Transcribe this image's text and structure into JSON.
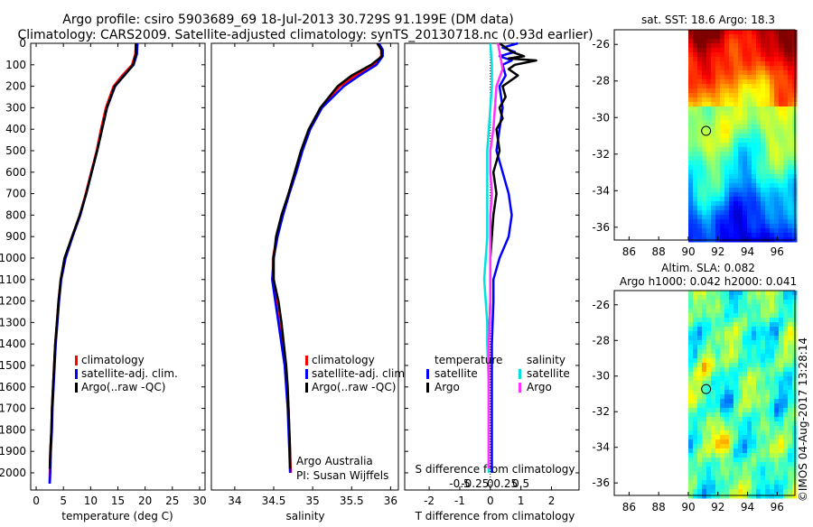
{
  "title": {
    "line1": "Argo profile: csiro 5903689_69 18-Jul-2013 30.729S 91.199E (DM data)",
    "line2": "Climatology: CARS2009. Satellite-adjusted climatology: synTS_20130718.nc (0.93d earlier)"
  },
  "colors": {
    "clim": "#ff0000",
    "sat": "#0000ff",
    "argo": "#000000",
    "cyan": "#00e0e0",
    "magenta": "#ff33ff"
  },
  "chart_data": [
    {
      "id": "temperature",
      "type": "line",
      "xlabel": "temperature (deg C)",
      "ylabel": "",
      "xlim": [
        -1,
        31
      ],
      "ylim": [
        2080,
        0
      ],
      "xticks": [
        0,
        5,
        10,
        15,
        20,
        25,
        30
      ],
      "yticks": [
        0,
        100,
        200,
        300,
        400,
        500,
        600,
        700,
        800,
        900,
        1000,
        1100,
        1200,
        1300,
        1400,
        1500,
        1600,
        1700,
        1800,
        1900,
        2000
      ],
      "legend": [
        "climatology",
        "satellite-adj. clim.",
        "Argo(..raw -QC)"
      ],
      "series": [
        {
          "name": "climatology",
          "color": "#ff0000",
          "depth": [
            0,
            50,
            100,
            150,
            200,
            300,
            400,
            500,
            600,
            700,
            800,
            900,
            1000,
            1100,
            1200,
            1300,
            1400,
            1500,
            1600,
            1700,
            1800,
            1900,
            2000,
            2050
          ],
          "values": [
            18.3,
            18.2,
            17.6,
            15.8,
            14.2,
            12.8,
            11.9,
            11.1,
            10.1,
            9.1,
            8.0,
            6.6,
            5.3,
            4.5,
            4.1,
            3.8,
            3.5,
            3.3,
            3.1,
            2.9,
            2.8,
            2.6,
            2.5,
            2.45
          ]
        },
        {
          "name": "satellite-adj. clim.",
          "color": "#0000ff",
          "depth": [
            0,
            50,
            100,
            150,
            200,
            300,
            400,
            500,
            600,
            700,
            800,
            900,
            1000,
            1100,
            1200,
            1300,
            1400,
            1500,
            1600,
            1700,
            1800,
            1900,
            2000,
            2050
          ],
          "values": [
            18.6,
            18.5,
            17.9,
            16.1,
            14.5,
            13.0,
            12.1,
            11.2,
            10.2,
            9.2,
            8.1,
            6.7,
            5.4,
            4.6,
            4.2,
            3.9,
            3.6,
            3.4,
            3.2,
            3.0,
            2.9,
            2.7,
            2.6,
            2.5
          ]
        },
        {
          "name": "Argo(..raw -QC)",
          "color": "#000000",
          "depth": [
            0,
            50,
            100,
            150,
            200,
            300,
            400,
            500,
            600,
            700,
            800,
            900,
            1000,
            1100,
            1200,
            1300,
            1400,
            1500,
            1600,
            1700,
            1800,
            1900,
            1980
          ],
          "values": [
            18.3,
            18.3,
            17.8,
            16.2,
            14.4,
            13.0,
            12.1,
            11.2,
            10.2,
            9.2,
            8.0,
            6.6,
            5.2,
            4.5,
            4.1,
            3.8,
            3.5,
            3.3,
            3.1,
            2.9,
            2.8,
            2.6,
            2.5
          ]
        }
      ]
    },
    {
      "id": "salinity",
      "type": "line",
      "xlabel": "salinity",
      "xlim": [
        33.7,
        36.1
      ],
      "ylim": [
        2080,
        0
      ],
      "xticks": [
        34,
        34.5,
        35,
        35.5,
        36
      ],
      "legend": [
        "climatology",
        "satellite-adj. clim.",
        "Argo(..raw -QC)"
      ],
      "annotation": [
        "Argo Australia",
        "PI: Susan Wijffels"
      ],
      "series": [
        {
          "name": "climatology",
          "color": "#ff0000",
          "depth": [
            0,
            30,
            60,
            100,
            150,
            200,
            300,
            400,
            500,
            600,
            700,
            800,
            900,
            1000,
            1100,
            1200,
            1300,
            1400,
            1500,
            1600,
            1700,
            1800,
            1900,
            2000
          ],
          "values": [
            35.83,
            35.88,
            35.88,
            35.78,
            35.55,
            35.35,
            35.1,
            34.96,
            34.86,
            34.78,
            34.69,
            34.61,
            34.54,
            34.49,
            34.49,
            34.53,
            34.57,
            34.61,
            34.65,
            34.67,
            34.69,
            34.7,
            34.71,
            34.72
          ]
        },
        {
          "name": "satellite-adj. clim.",
          "color": "#0000ff",
          "depth": [
            0,
            30,
            60,
            100,
            150,
            200,
            300,
            400,
            500,
            600,
            700,
            800,
            900,
            1000,
            1100,
            1200,
            1300,
            1400,
            1500,
            1600,
            1700,
            1800,
            1900,
            2000
          ],
          "values": [
            35.85,
            35.9,
            35.9,
            35.82,
            35.6,
            35.4,
            35.12,
            34.97,
            34.87,
            34.79,
            34.7,
            34.62,
            34.55,
            34.5,
            34.48,
            34.52,
            34.56,
            34.6,
            34.64,
            34.66,
            34.68,
            34.69,
            34.7,
            34.71
          ]
        },
        {
          "name": "Argo(..raw -QC)",
          "color": "#000000",
          "depth": [
            0,
            30,
            60,
            100,
            150,
            200,
            300,
            400,
            500,
            600,
            700,
            800,
            900,
            1000,
            1100,
            1200,
            1300,
            1400,
            1500,
            1600,
            1700,
            1800,
            1900,
            1980
          ],
          "values": [
            35.83,
            35.88,
            35.89,
            35.75,
            35.5,
            35.32,
            35.1,
            34.95,
            34.85,
            34.77,
            34.69,
            34.6,
            34.53,
            34.5,
            34.5,
            34.56,
            34.6,
            34.63,
            34.66,
            34.68,
            34.69,
            34.7,
            34.71,
            34.71
          ]
        }
      ]
    },
    {
      "id": "difference",
      "type": "line",
      "xlabel": "T difference from climatology",
      "xlabel2": "S difference from climatology",
      "xlim": [
        -2.8,
        2.9
      ],
      "ylim": [
        2080,
        0
      ],
      "xticks_t": [
        -2,
        -1,
        0,
        1,
        2
      ],
      "xticks_s_labels": [
        "-0.5",
        "-0.25",
        "0",
        "0.25",
        "0.5"
      ],
      "xticks_s_pos": [
        -1,
        -0.5,
        0,
        0.5,
        1
      ],
      "legend_t": [
        "temperature",
        "satellite",
        "Argo"
      ],
      "legend_s": [
        "salinity",
        "satellite",
        "Argo"
      ],
      "series": [
        {
          "name": "T satellite",
          "color": "#0000ff",
          "depth": [
            0,
            20,
            40,
            60,
            80,
            100,
            150,
            200,
            300,
            400,
            500,
            600,
            700,
            800,
            900,
            1000,
            1100,
            1200,
            1400,
            1600,
            1800,
            2000
          ],
          "values": [
            0.9,
            0.4,
            0.8,
            0.3,
            0.7,
            0.4,
            0.5,
            0.3,
            0.4,
            0.3,
            0.2,
            0.4,
            0.6,
            0.7,
            0.6,
            0.3,
            0.1,
            0.1,
            0.05,
            0.05,
            0.05,
            0.05
          ]
        },
        {
          "name": "T Argo",
          "color": "#000000",
          "depth": [
            0,
            20,
            40,
            60,
            70,
            80,
            100,
            120,
            150,
            200,
            250,
            300,
            350,
            400,
            500,
            600,
            700,
            800,
            900,
            1000,
            1100,
            1200,
            1400,
            1600,
            1800,
            1980
          ],
          "values": [
            0.3,
            0.5,
            0.7,
            1.1,
            0.6,
            1.5,
            0.8,
            0.6,
            0.9,
            0.4,
            0.5,
            0.3,
            0.4,
            0.2,
            0.3,
            0.1,
            0.2,
            0.1,
            0.05,
            0.0,
            0.0,
            0.0,
            -0.05,
            -0.05,
            -0.05,
            -0.05
          ]
        },
        {
          "name": "S satellite",
          "color": "#00e0e0",
          "depth": [
            0,
            100,
            200,
            300,
            400,
            500,
            600,
            700,
            800,
            900,
            1000,
            1100,
            1200,
            1300,
            1400,
            1600,
            1800,
            2000
          ],
          "values": [
            0.0,
            0.05,
            0.05,
            0.0,
            -0.05,
            -0.1,
            -0.1,
            -0.1,
            -0.1,
            -0.1,
            -0.15,
            -0.2,
            -0.15,
            -0.1,
            -0.1,
            -0.05,
            -0.05,
            -0.05
          ]
        },
        {
          "name": "S Argo",
          "color": "#ff33ff",
          "depth": [
            0,
            40,
            80,
            120,
            160,
            200,
            300,
            400,
            500,
            600,
            700,
            800,
            900,
            1000,
            1200,
            1400,
            1600,
            1800,
            1980
          ],
          "values": [
            0.25,
            0.3,
            0.35,
            0.4,
            0.3,
            0.2,
            0.15,
            0.1,
            0.0,
            0.0,
            0.05,
            0.0,
            0.0,
            0.0,
            0.0,
            -0.05,
            -0.05,
            -0.05,
            -0.05
          ]
        }
      ]
    },
    {
      "id": "sst_map",
      "type": "heatmap",
      "title": "sat. SST: 18.6 Argo: 18.3",
      "xlim": [
        85,
        97.2
      ],
      "ylim": [
        -36.7,
        -25.2
      ],
      "xticks": [
        86,
        88,
        90,
        92,
        94,
        96
      ],
      "yticks": [
        -26,
        -28,
        -30,
        -32,
        -34,
        -36
      ],
      "data_xmin": 90,
      "marker": {
        "lon": 91.2,
        "lat": -30.73
      }
    },
    {
      "id": "sla_map",
      "type": "heatmap",
      "title": "Altim. SLA: 0.082",
      "subtitle": "Argo h1000: 0.042 h2000: 0.041",
      "xlim": [
        85,
        97.2
      ],
      "ylim": [
        -36.7,
        -25.2
      ],
      "xticks": [
        86,
        88,
        90,
        92,
        94,
        96
      ],
      "yticks": [
        -26,
        -28,
        -30,
        -32,
        -34,
        -36
      ],
      "data_xmin": 90,
      "marker": {
        "lon": 91.2,
        "lat": -30.73
      }
    }
  ],
  "side_text": "©IMOS 04-Aug-2017 13:28:14"
}
